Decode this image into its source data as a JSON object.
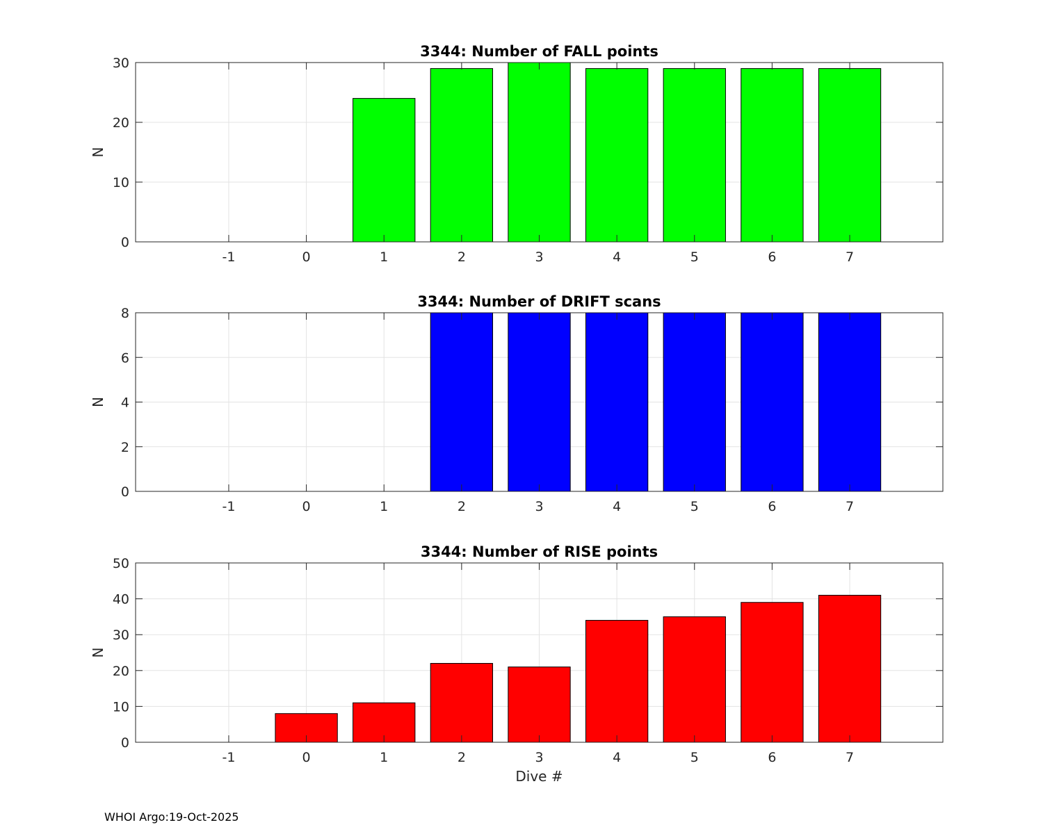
{
  "chart_data": [
    {
      "type": "bar",
      "title": "3344: Number of FALL points",
      "xlabel": "",
      "ylabel": "N",
      "color": "#00ff00",
      "xlim": [
        -2.2,
        8.2
      ],
      "ylim": [
        0,
        30
      ],
      "xticks": [
        "-1",
        "0",
        "1",
        "2",
        "3",
        "4",
        "5",
        "6",
        "7"
      ],
      "yticks": [
        "0",
        "10",
        "20",
        "30"
      ],
      "grid": true,
      "x": [
        1,
        2,
        3,
        4,
        5,
        6,
        7
      ],
      "values": [
        24,
        29,
        30,
        29,
        29,
        29,
        29
      ]
    },
    {
      "type": "bar",
      "title": "3344: Number of DRIFT scans",
      "xlabel": "",
      "ylabel": "N",
      "color": "#0000ff",
      "xlim": [
        -2.2,
        8.2
      ],
      "ylim": [
        0,
        8
      ],
      "xticks": [
        "-1",
        "0",
        "1",
        "2",
        "3",
        "4",
        "5",
        "6",
        "7"
      ],
      "yticks": [
        "0",
        "2",
        "4",
        "6",
        "8"
      ],
      "grid": true,
      "x": [
        2,
        3,
        4,
        5,
        6,
        7
      ],
      "values": [
        8,
        8,
        8,
        8,
        8,
        8
      ]
    },
    {
      "type": "bar",
      "title": "3344: Number of RISE points",
      "xlabel": "Dive #",
      "ylabel": "N",
      "color": "#ff0000",
      "xlim": [
        -2.2,
        8.2
      ],
      "ylim": [
        0,
        50
      ],
      "xticks": [
        "-1",
        "0",
        "1",
        "2",
        "3",
        "4",
        "5",
        "6",
        "7"
      ],
      "yticks": [
        "0",
        "10",
        "20",
        "30",
        "40",
        "50"
      ],
      "grid": true,
      "x": [
        0,
        1,
        2,
        3,
        4,
        5,
        6,
        7
      ],
      "values": [
        8,
        11,
        22,
        21,
        34,
        35,
        39,
        41
      ]
    }
  ],
  "footer": {
    "text": "WHOI Argo:19-Oct-2025"
  }
}
